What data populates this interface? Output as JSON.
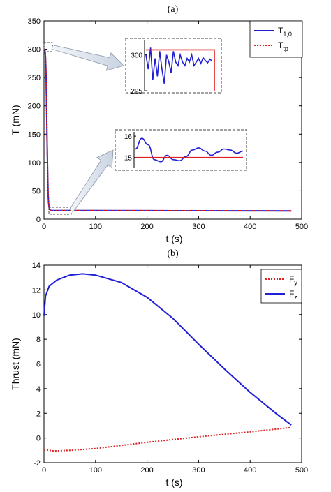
{
  "chart_data": [
    {
      "panel_label": "(a)",
      "type": "line",
      "xlabel": "t (s)",
      "ylabel": "T (mN)",
      "xlim": [
        0,
        500
      ],
      "ylim": [
        0,
        350
      ],
      "xticks": [
        0,
        100,
        200,
        300,
        400,
        500
      ],
      "yticks": [
        0,
        50,
        100,
        150,
        200,
        250,
        300,
        350
      ],
      "legend_position": "top-right",
      "series": [
        {
          "name": "T",
          "name_sub": "1,0",
          "color": "#1f1fd6",
          "style": "solid",
          "x": [
            0,
            1,
            2,
            3,
            4,
            5,
            6,
            7,
            8,
            9,
            10,
            11,
            12,
            13,
            15,
            20,
            40,
            100,
            200,
            300,
            400,
            480
          ],
          "y": [
            300,
            299,
            297,
            285,
            255,
            200,
            140,
            85,
            45,
            28,
            20,
            17,
            16,
            15.5,
            15.3,
            15.2,
            15.1,
            15,
            14.9,
            14.8,
            14.7,
            14.6
          ]
        },
        {
          "name": "T",
          "name_sub": "tp",
          "color": "#e02020",
          "style": "dotted",
          "x": [
            0,
            1,
            2,
            3,
            4,
            5,
            6,
            7,
            8,
            9,
            10,
            11,
            12,
            13,
            15,
            20,
            40,
            100,
            200,
            300,
            400,
            480
          ],
          "y": [
            300,
            300,
            298,
            286,
            256,
            201,
            141,
            86,
            46,
            29,
            21,
            17,
            16,
            15.4,
            15.2,
            15.1,
            15,
            15,
            14.9,
            14.8,
            14.7,
            14.6
          ]
        }
      ],
      "insets": [
        {
          "yticks": [
            295,
            300
          ],
          "ylim": [
            295,
            302
          ],
          "series": [
            {
              "name": "T1,0",
              "color": "#1f1fd6",
              "y": [
                300,
                298,
                301,
                296.5,
                299.5,
                297,
                300.5,
                298,
                296,
                300,
                299,
                297.5,
                300.5,
                299,
                298.5,
                300,
                299,
                298.5,
                299.5,
                299,
                300,
                298.5,
                299,
                299.5,
                298.8,
                299.6,
                299.2,
                298.9,
                299.4,
                299.1
              ]
            },
            {
              "name": "Ttp",
              "color": "#e02020",
              "y": [
                300.7,
                300.7,
                295
              ]
            }
          ]
        },
        {
          "yticks": [
            15,
            16
          ],
          "ylim": [
            14.5,
            16.2
          ],
          "series": [
            {
              "name": "T1,0",
              "color": "#1f1fd6",
              "y": [
                15.4,
                15.9,
                15.6,
                14.9,
                14.8,
                15.1,
                14.9,
                14.85,
                15.05,
                15.35,
                15.45,
                15.3,
                15.1,
                15.25,
                15.4,
                15.35,
                15.2,
                15.3
              ]
            },
            {
              "name": "Ttp",
              "color": "#e02020",
              "y": [
                15,
                15
              ]
            }
          ]
        }
      ]
    },
    {
      "panel_label": "(b)",
      "type": "line",
      "xlabel": "t (s)",
      "ylabel": "Thrust (mN)",
      "xlim": [
        0,
        500
      ],
      "ylim": [
        -2,
        14
      ],
      "xticks": [
        0,
        100,
        200,
        300,
        400,
        500
      ],
      "yticks": [
        -2,
        0,
        2,
        4,
        6,
        8,
        10,
        12,
        14
      ],
      "legend_position": "top-right",
      "series": [
        {
          "name": "F",
          "name_sub": "y",
          "color": "#e02020",
          "style": "dotted",
          "x": [
            0,
            20,
            50,
            100,
            200,
            300,
            400,
            480
          ],
          "y": [
            -0.95,
            -1.05,
            -1.0,
            -0.85,
            -0.35,
            0.1,
            0.5,
            0.85
          ]
        },
        {
          "name": "F",
          "name_sub": "z",
          "color": "#1f1fd6",
          "style": "solid",
          "x": [
            0,
            3,
            10,
            25,
            50,
            75,
            100,
            150,
            200,
            250,
            300,
            350,
            400,
            450,
            480
          ],
          "y": [
            9.9,
            11.5,
            12.3,
            12.8,
            13.2,
            13.3,
            13.2,
            12.6,
            11.4,
            9.7,
            7.6,
            5.6,
            3.7,
            2.0,
            1.05
          ]
        }
      ]
    }
  ]
}
